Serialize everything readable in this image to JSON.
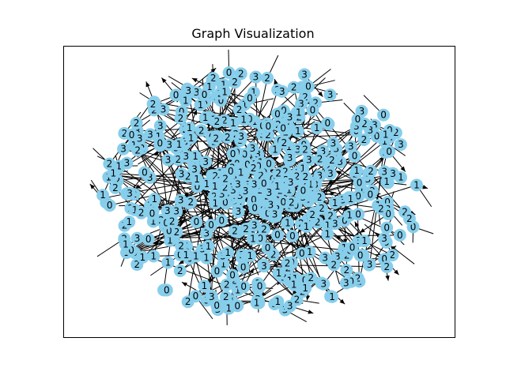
{
  "title": "Graph Visualization",
  "colors": {
    "node_fill": "#87CEEB",
    "edge": "#000000",
    "label": "#000000",
    "frame": "#000000",
    "background": "#ffffff"
  },
  "chart_data": {
    "type": "network",
    "title": "Graph Visualization",
    "directed": true,
    "node_label_values": [
      "0",
      "1",
      "2",
      "3"
    ],
    "layout_shape": "dense elliptical cloud (spring layout)",
    "axes_visible": false,
    "grid": false,
    "legend": "none"
  }
}
